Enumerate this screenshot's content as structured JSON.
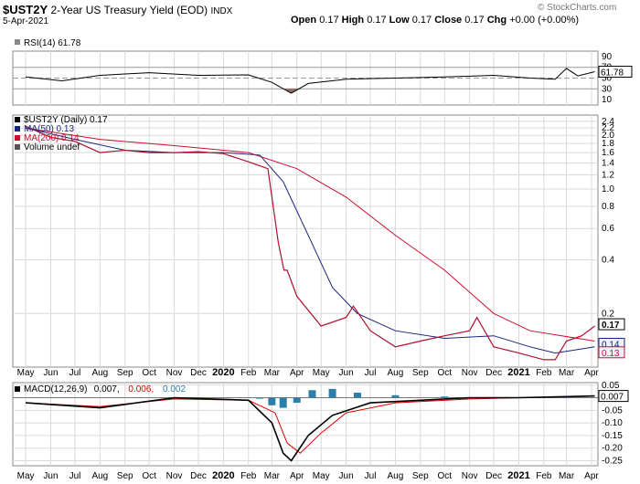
{
  "header": {
    "symbol": "$UST2Y",
    "name": "2-Year US Treasury Yield (EOD)",
    "exchange": "INDX",
    "date": "5-Apr-2021",
    "watermark": "© StockCharts.com",
    "open_label": "Open",
    "open": "0.17",
    "high_label": "High",
    "high": "0.17",
    "low_label": "Low",
    "low": "0.17",
    "close_label": "Close",
    "close": "0.17",
    "chg_label": "Chg",
    "chg": "+0.00 (+0.00%)"
  },
  "colors": {
    "price": "#b0102e",
    "ma50": "#1a237e",
    "ma200": "#c8102e",
    "rsi": "#000000",
    "rsi_fill": "#8d6e63",
    "macd": "#000000",
    "signal": "#e00000",
    "hist": "#2b7fa8",
    "grid": "#d9d9d9"
  },
  "chart_data": [
    {
      "type": "line",
      "panel": "RSI",
      "legend": "RSI(14) 61.78",
      "ylim": [
        0,
        100
      ],
      "y_ticks": [
        "90",
        "70",
        "50",
        "30",
        "10"
      ],
      "reference_lines": [
        70,
        50,
        30
      ],
      "last_value_label": "61.78",
      "series": [
        {
          "name": "RSI(14)",
          "x": [
            "2019-05-01",
            "2019-06-15",
            "2019-08-01",
            "2019-10-01",
            "2019-12-01",
            "2020-02-01",
            "2020-03-01",
            "2020-03-25",
            "2020-04-15",
            "2020-06-01",
            "2020-08-01",
            "2020-10-01",
            "2020-12-01",
            "2021-01-15",
            "2021-02-15",
            "2021-03-01",
            "2021-03-15",
            "2021-04-05"
          ],
          "values": [
            52,
            45,
            55,
            60,
            55,
            56,
            42,
            22,
            40,
            48,
            50,
            52,
            55,
            50,
            48,
            68,
            54,
            61.78
          ]
        }
      ]
    },
    {
      "type": "line",
      "panel": "price",
      "scale": "log",
      "ylim": [
        0.1,
        2.6
      ],
      "y_ticks": [
        "2.4",
        "2.2",
        "2.0",
        "1.8",
        "1.6",
        "1.4",
        "1.2",
        "1.0",
        "0.8",
        "0.6",
        "0.4",
        "0.2"
      ],
      "legend": [
        "$UST2Y (Daily) 0.17",
        "MA(50) 0.13",
        "MA(200) 0.14",
        "Volume undef"
      ],
      "last_labels": [
        "0.17",
        "0.14",
        "0.13"
      ],
      "series": [
        {
          "name": "$UST2Y (Daily)",
          "x": [
            "2019-05-01",
            "2019-06-01",
            "2019-07-01",
            "2019-08-01",
            "2019-09-01",
            "2019-10-01",
            "2019-11-01",
            "2019-12-01",
            "2020-01-01",
            "2020-02-01",
            "2020-02-25",
            "2020-03-01",
            "2020-03-09",
            "2020-03-16",
            "2020-03-20",
            "2020-04-01",
            "2020-05-01",
            "2020-06-01",
            "2020-06-10",
            "2020-07-01",
            "2020-08-01",
            "2020-09-01",
            "2020-10-01",
            "2020-11-01",
            "2020-11-10",
            "2020-12-01",
            "2021-01-01",
            "2021-02-01",
            "2021-02-15",
            "2021-03-01",
            "2021-03-20",
            "2021-04-05"
          ],
          "values": [
            2.25,
            1.95,
            1.85,
            1.6,
            1.65,
            1.6,
            1.6,
            1.62,
            1.58,
            1.42,
            1.3,
            0.9,
            0.5,
            0.35,
            0.35,
            0.25,
            0.17,
            0.19,
            0.22,
            0.16,
            0.13,
            0.14,
            0.15,
            0.16,
            0.19,
            0.13,
            0.12,
            0.11,
            0.11,
            0.14,
            0.15,
            0.17
          ]
        },
        {
          "name": "MA(50)",
          "x": [
            "2019-05-01",
            "2019-07-01",
            "2019-09-01",
            "2019-11-01",
            "2020-01-01",
            "2020-02-15",
            "2020-03-15",
            "2020-04-15",
            "2020-05-15",
            "2020-06-15",
            "2020-08-01",
            "2020-10-01",
            "2020-12-01",
            "2021-01-15",
            "2021-02-15",
            "2021-04-05"
          ],
          "values": [
            2.2,
            1.9,
            1.65,
            1.6,
            1.6,
            1.55,
            1.1,
            0.55,
            0.28,
            0.2,
            0.16,
            0.145,
            0.15,
            0.13,
            0.12,
            0.13
          ]
        },
        {
          "name": "MA(200)",
          "x": [
            "2019-05-01",
            "2019-08-01",
            "2019-11-01",
            "2020-02-01",
            "2020-04-01",
            "2020-06-01",
            "2020-08-01",
            "2020-10-01",
            "2020-12-01",
            "2021-01-15",
            "2021-04-05"
          ],
          "values": [
            2.2,
            1.9,
            1.75,
            1.6,
            1.3,
            0.9,
            0.55,
            0.35,
            0.2,
            0.16,
            0.14
          ]
        }
      ]
    },
    {
      "type": "line",
      "panel": "MACD",
      "legend": [
        "MACD(12,26,9)",
        "0.007,",
        "0.006,",
        "0.002"
      ],
      "ylim": [
        -0.27,
        0.06
      ],
      "y_ticks": [
        "0.05",
        "-0.00",
        "-0.05",
        "-0.10",
        "-0.15",
        "-0.20",
        "-0.25"
      ],
      "last_value_label": "0.007",
      "series": [
        {
          "name": "MACD",
          "x": [
            "2019-05-01",
            "2019-08-01",
            "2019-11-01",
            "2020-02-01",
            "2020-03-01",
            "2020-03-15",
            "2020-03-25",
            "2020-04-15",
            "2020-05-15",
            "2020-07-01",
            "2020-09-01",
            "2020-11-01",
            "2021-01-01",
            "2021-04-05"
          ],
          "values": [
            -0.02,
            -0.04,
            0.0,
            -0.01,
            -0.1,
            -0.22,
            -0.25,
            -0.15,
            -0.07,
            -0.02,
            -0.01,
            0.0,
            0.0,
            0.007
          ]
        },
        {
          "name": "Signal",
          "x": [
            "2019-05-01",
            "2019-08-01",
            "2019-11-01",
            "2020-02-01",
            "2020-03-05",
            "2020-03-20",
            "2020-04-05",
            "2020-05-01",
            "2020-06-01",
            "2020-08-01",
            "2020-11-01",
            "2021-01-01",
            "2021-04-05"
          ],
          "values": [
            -0.02,
            -0.035,
            -0.005,
            -0.01,
            -0.06,
            -0.18,
            -0.22,
            -0.14,
            -0.06,
            -0.02,
            -0.005,
            0.0,
            0.006
          ]
        },
        {
          "name": "Histogram",
          "x": [
            "2020-02-15",
            "2020-03-01",
            "2020-03-15",
            "2020-04-01",
            "2020-04-20",
            "2020-05-15",
            "2020-06-15",
            "2020-08-01",
            "2020-10-01",
            "2021-03-01"
          ],
          "values": [
            0.0,
            -0.03,
            -0.04,
            -0.02,
            0.03,
            0.035,
            0.02,
            0.01,
            0.005,
            0.002
          ]
        }
      ]
    }
  ],
  "x_axis": {
    "labels": [
      {
        "t": "May",
        "d": "2019-05-01"
      },
      {
        "t": "Jun",
        "d": "2019-06-01"
      },
      {
        "t": "Jul",
        "d": "2019-07-01"
      },
      {
        "t": "Aug",
        "d": "2019-08-01"
      },
      {
        "t": "Sep",
        "d": "2019-09-01"
      },
      {
        "t": "Oct",
        "d": "2019-10-01"
      },
      {
        "t": "Nov",
        "d": "2019-11-01"
      },
      {
        "t": "Dec",
        "d": "2019-12-01"
      },
      {
        "t": "2020",
        "d": "2020-01-01",
        "bold": true
      },
      {
        "t": "Feb",
        "d": "2020-02-01"
      },
      {
        "t": "Mar",
        "d": "2020-03-01"
      },
      {
        "t": "Apr",
        "d": "2020-04-01"
      },
      {
        "t": "May",
        "d": "2020-05-01"
      },
      {
        "t": "Jun",
        "d": "2020-06-01"
      },
      {
        "t": "Jul",
        "d": "2020-07-01"
      },
      {
        "t": "Aug",
        "d": "2020-08-01"
      },
      {
        "t": "Sep",
        "d": "2020-09-01"
      },
      {
        "t": "Oct",
        "d": "2020-10-01"
      },
      {
        "t": "Nov",
        "d": "2020-11-01"
      },
      {
        "t": "Dec",
        "d": "2020-12-01"
      },
      {
        "t": "2021",
        "d": "2021-01-01",
        "bold": true
      },
      {
        "t": "Feb",
        "d": "2021-02-01"
      },
      {
        "t": "Mar",
        "d": "2021-03-01"
      },
      {
        "t": "Apr",
        "d": "2021-04-01"
      }
    ],
    "range": [
      "2019-04-15",
      "2021-04-09"
    ]
  }
}
